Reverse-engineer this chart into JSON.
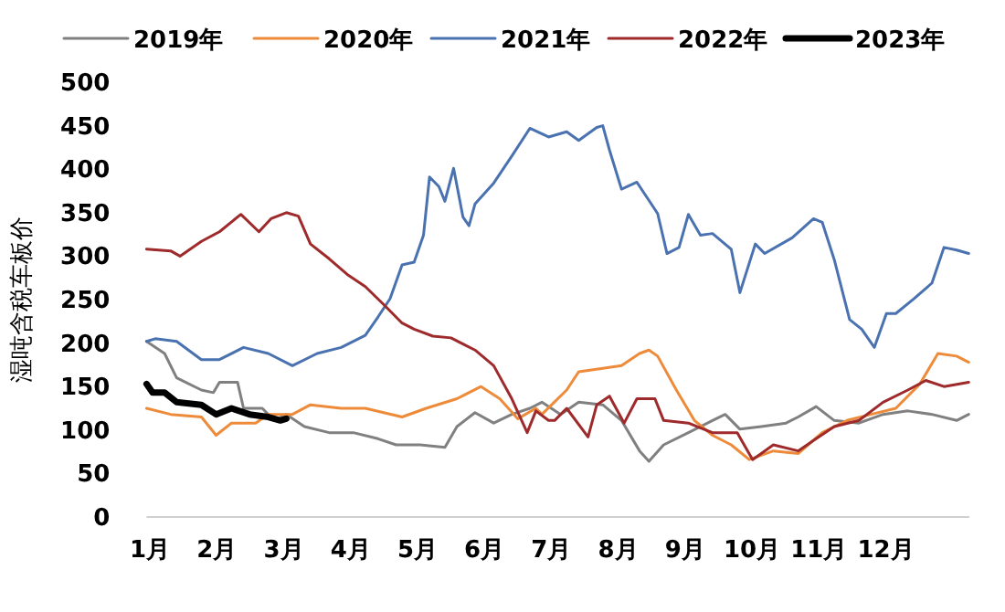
{
  "chart_data": {
    "type": "line",
    "ylabel": "湿吨含税车板价",
    "xlim": [
      0.95,
      13.25
    ],
    "ylim": [
      0,
      500
    ],
    "xticks": [
      {
        "value": 1,
        "label": "1月"
      },
      {
        "value": 2,
        "label": "2月"
      },
      {
        "value": 3,
        "label": "3月"
      },
      {
        "value": 4,
        "label": "4月"
      },
      {
        "value": 5,
        "label": "5月"
      },
      {
        "value": 6,
        "label": "6月"
      },
      {
        "value": 7,
        "label": "7月"
      },
      {
        "value": 8,
        "label": "8月"
      },
      {
        "value": 9,
        "label": "9月"
      },
      {
        "value": 10,
        "label": "10月"
      },
      {
        "value": 11,
        "label": "11月"
      },
      {
        "value": 12,
        "label": "12月"
      }
    ],
    "yticks": [
      0,
      50,
      100,
      150,
      200,
      250,
      300,
      350,
      400,
      450,
      500
    ],
    "grid": false,
    "legend": "top",
    "marker": "none",
    "series": [
      {
        "name": "2019年",
        "color": "#808080",
        "x": [
          0.95,
          1.22,
          1.4,
          1.77,
          1.95,
          2.04,
          2.31,
          2.4,
          2.68,
          2.86,
          3.04,
          3.31,
          3.68,
          4.04,
          4.41,
          4.68,
          5.04,
          5.41,
          5.59,
          5.86,
          6.14,
          6.41,
          6.68,
          6.86,
          7.14,
          7.41,
          7.77,
          8.05,
          8.32,
          8.46,
          8.68,
          9.05,
          9.41,
          9.6,
          9.82,
          10.14,
          10.51,
          10.69,
          10.96,
          11.23,
          11.6,
          11.96,
          12.33,
          12.69,
          13.06,
          13.24
        ],
        "values": [
          202,
          188,
          160,
          146,
          143,
          155,
          155,
          125,
          125,
          111,
          118,
          104,
          97,
          97,
          90,
          83,
          83,
          80,
          104,
          120,
          108,
          118,
          125,
          132,
          118,
          132,
          129,
          111,
          76,
          64,
          83,
          97,
          111,
          118,
          101,
          104,
          108,
          115,
          127,
          111,
          108,
          118,
          122,
          118,
          111,
          118
        ]
      },
      {
        "name": "2020年",
        "color": "#ed8b3a",
        "x": [
          0.95,
          1.31,
          1.77,
          1.99,
          2.22,
          2.58,
          2.77,
          3.13,
          3.4,
          3.86,
          4.22,
          4.77,
          5.13,
          5.59,
          5.95,
          6.23,
          6.5,
          6.77,
          6.86,
          7.23,
          7.41,
          7.77,
          8.05,
          8.32,
          8.46,
          8.59,
          8.87,
          9.14,
          9.41,
          9.69,
          9.96,
          10.32,
          10.69,
          11.05,
          11.42,
          11.78,
          12.15,
          12.51,
          12.78,
          13.06,
          13.24
        ],
        "values": [
          125,
          118,
          115,
          94,
          108,
          108,
          118,
          118,
          129,
          125,
          125,
          115,
          125,
          136,
          150,
          136,
          113,
          125,
          118,
          146,
          167,
          171,
          174,
          188,
          192,
          185,
          146,
          111,
          94,
          83,
          66,
          76,
          73,
          97,
          111,
          118,
          125,
          153,
          188,
          185,
          178
        ]
      },
      {
        "name": "2021年",
        "color": "#4a72b0",
        "x": [
          0.95,
          1.08,
          1.4,
          1.77,
          2.04,
          2.4,
          2.77,
          3.13,
          3.5,
          3.86,
          4.22,
          4.41,
          4.59,
          4.77,
          4.95,
          5.09,
          5.18,
          5.32,
          5.41,
          5.54,
          5.68,
          5.77,
          5.86,
          6.14,
          6.41,
          6.68,
          6.96,
          7.23,
          7.41,
          7.68,
          7.77,
          7.87,
          8.05,
          8.28,
          8.59,
          8.73,
          8.91,
          9.05,
          9.23,
          9.41,
          9.69,
          9.82,
          10.05,
          10.19,
          10.6,
          10.92,
          11.05,
          11.23,
          11.46,
          11.64,
          11.83,
          12.01,
          12.15,
          12.42,
          12.69,
          12.87,
          13.06,
          13.24
        ],
        "values": [
          202,
          205,
          202,
          181,
          181,
          195,
          188,
          174,
          188,
          195,
          209,
          230,
          251,
          290,
          293,
          324,
          391,
          380,
          363,
          401,
          345,
          335,
          360,
          384,
          415,
          447,
          437,
          443,
          433,
          448,
          450,
          422,
          377,
          385,
          349,
          303,
          310,
          348,
          324,
          326,
          308,
          258,
          314,
          303,
          321,
          343,
          339,
          296,
          227,
          216,
          195,
          234,
          234,
          251,
          269,
          310,
          307,
          303
        ]
      },
      {
        "name": "2022年",
        "color": "#9e2a2b",
        "x": [
          0.95,
          1.31,
          1.45,
          1.77,
          2.04,
          2.36,
          2.63,
          2.81,
          3.04,
          3.22,
          3.4,
          3.68,
          3.95,
          4.22,
          4.5,
          4.77,
          4.95,
          5.23,
          5.5,
          5.86,
          6.14,
          6.41,
          6.64,
          6.77,
          6.96,
          7.05,
          7.23,
          7.55,
          7.68,
          7.87,
          8.09,
          8.28,
          8.55,
          8.68,
          9.05,
          9.41,
          9.78,
          10.01,
          10.32,
          10.69,
          10.96,
          11.23,
          11.6,
          11.96,
          12.33,
          12.6,
          12.87,
          13.24
        ],
        "values": [
          308,
          306,
          300,
          317,
          328,
          348,
          328,
          343,
          350,
          346,
          314,
          297,
          279,
          265,
          244,
          223,
          216,
          208,
          206,
          192,
          174,
          136,
          97,
          122,
          111,
          111,
          125,
          92,
          129,
          139,
          108,
          136,
          136,
          111,
          108,
          97,
          97,
          66,
          83,
          76,
          90,
          104,
          111,
          132,
          146,
          157,
          150,
          155
        ]
      },
      {
        "name": "2023年",
        "color": "#000000",
        "x": [
          0.95,
          1.04,
          1.22,
          1.4,
          1.77,
          1.99,
          2.22,
          2.49,
          2.77,
          2.95,
          3.04
        ],
        "values": [
          153,
          143,
          143,
          132,
          129,
          118,
          125,
          118,
          115,
          111,
          113
        ]
      }
    ]
  }
}
